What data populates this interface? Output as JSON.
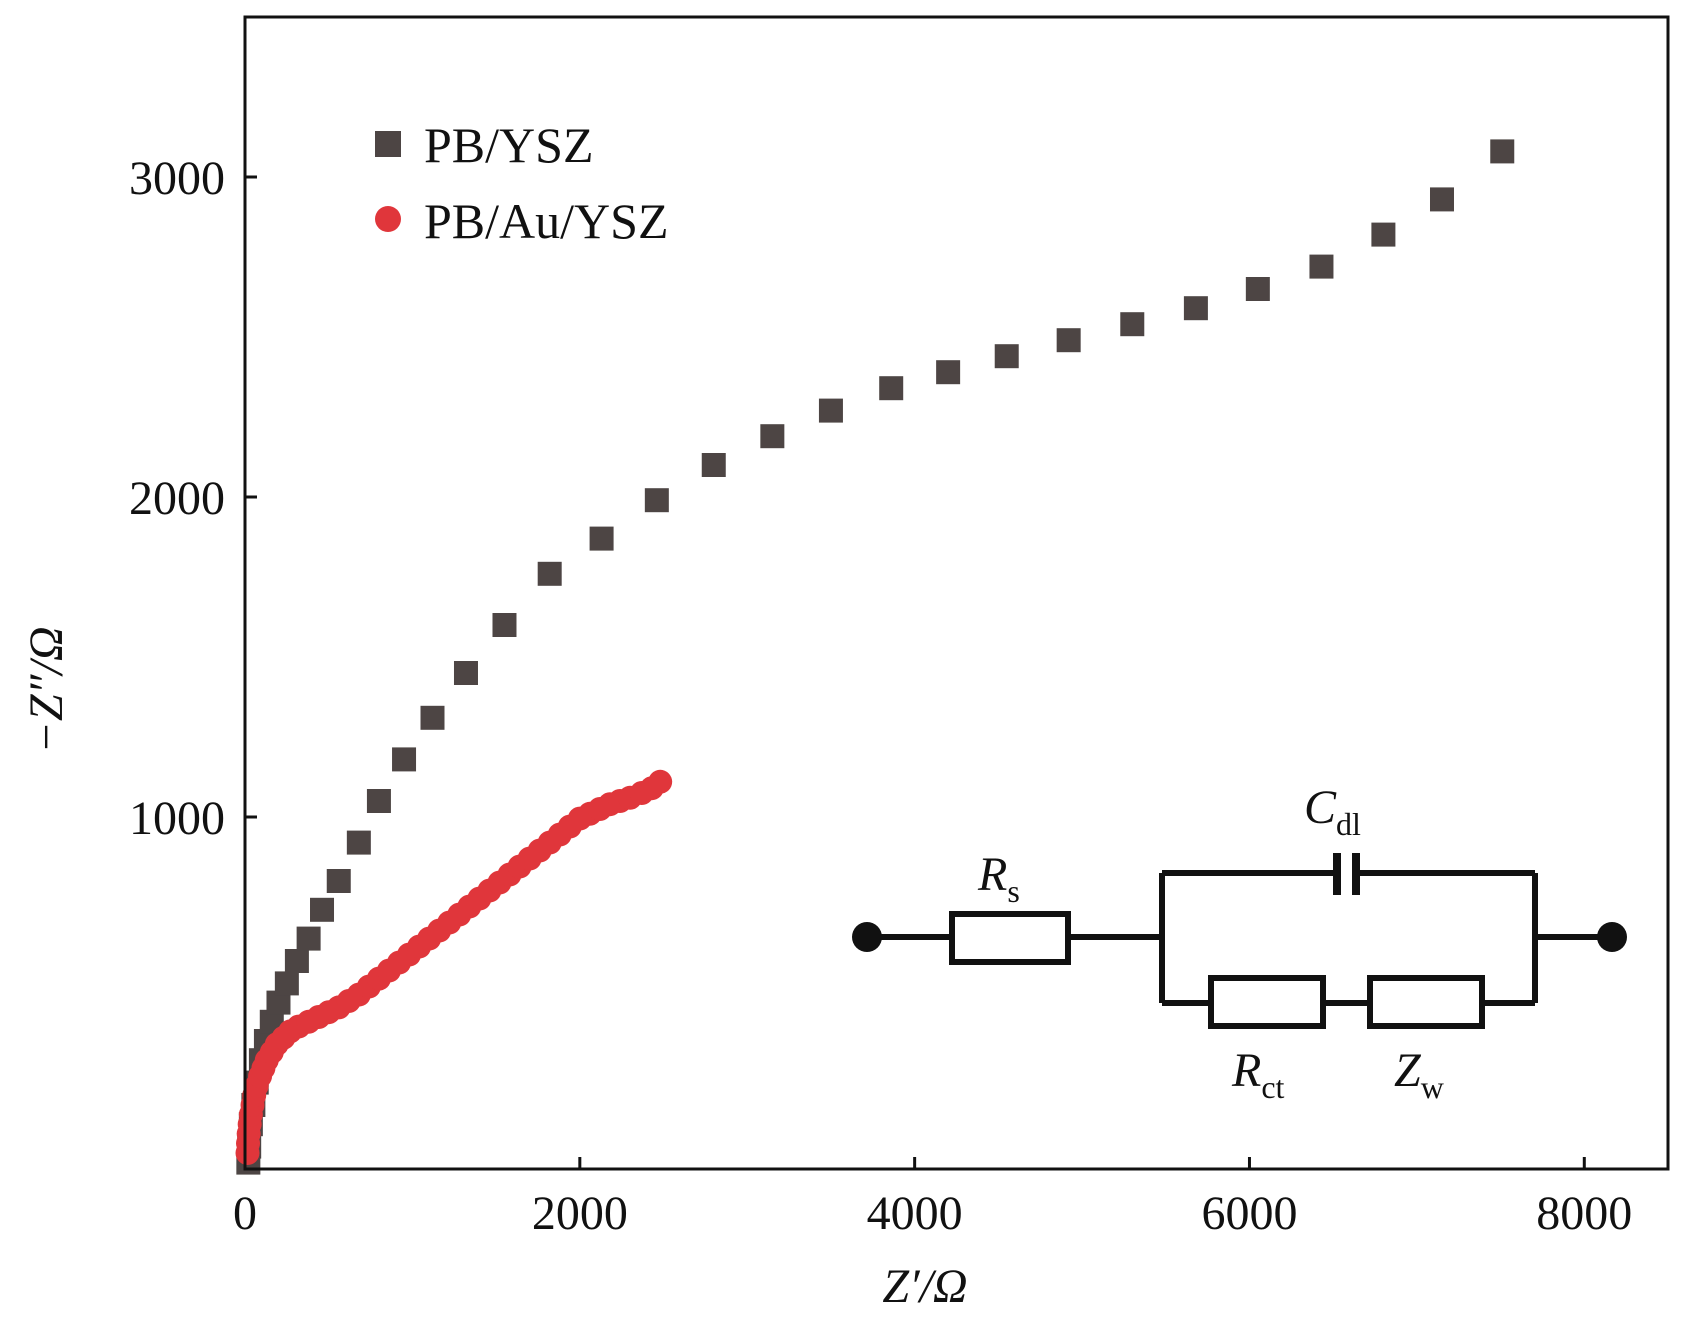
{
  "chart_data": {
    "type": "scatter",
    "title": "",
    "xlabel": "Z′/Ω",
    "ylabel": "−Z″/Ω",
    "xlim": [
      0,
      8500
    ],
    "ylim": [
      -100,
      3500
    ],
    "xticks": [
      0,
      2000,
      4000,
      6000,
      8000
    ],
    "yticks": [
      1000,
      2000,
      3000
    ],
    "legend_position": "top-left",
    "series": [
      {
        "name": "PB/YSZ",
        "marker": "square",
        "color": "#4d4544",
        "x": [
          20,
          25,
          35,
          50,
          70,
          95,
          125,
          160,
          200,
          250,
          310,
          380,
          460,
          560,
          680,
          800,
          950,
          1120,
          1320,
          1550,
          1820,
          2130,
          2460,
          2800,
          3150,
          3500,
          3860,
          4200,
          4550,
          4920,
          5300,
          5680,
          6050,
          6430,
          6800,
          7150,
          7510
        ],
        "y": [
          -80,
          -30,
          40,
          100,
          170,
          240,
          300,
          360,
          420,
          480,
          550,
          620,
          710,
          800,
          920,
          1050,
          1180,
          1310,
          1450,
          1600,
          1760,
          1870,
          1990,
          2100,
          2190,
          2270,
          2340,
          2390,
          2440,
          2490,
          2540,
          2590,
          2650,
          2720,
          2820,
          2930,
          3080
        ]
      },
      {
        "name": "PB/Au/YSZ",
        "marker": "circle",
        "color": "#e0363b",
        "x": [
          15,
          18,
          22,
          28,
          35,
          45,
          55,
          70,
          90,
          110,
          130,
          160,
          190,
          230,
          270,
          320,
          380,
          440,
          500,
          560,
          620,
          680,
          740,
          800,
          860,
          920,
          980,
          1040,
          1100,
          1160,
          1220,
          1280,
          1340,
          1400,
          1460,
          1520,
          1580,
          1640,
          1700,
          1760,
          1820,
          1880,
          1940,
          2000,
          2060,
          2120,
          2180,
          2240,
          2300,
          2370,
          2430,
          2480
        ],
        "y": [
          -50,
          -20,
          10,
          40,
          70,
          100,
          130,
          160,
          190,
          215,
          240,
          265,
          290,
          310,
          330,
          345,
          360,
          375,
          390,
          405,
          425,
          445,
          470,
          495,
          520,
          545,
          570,
          595,
          620,
          645,
          670,
          695,
          720,
          745,
          770,
          795,
          820,
          845,
          870,
          895,
          920,
          945,
          970,
          995,
          1010,
          1025,
          1040,
          1050,
          1060,
          1075,
          1090,
          1110
        ]
      }
    ],
    "inset": {
      "type": "equivalent-circuit",
      "components": [
        {
          "main": "R",
          "sub": "s"
        },
        {
          "main": "C",
          "sub": "dl"
        },
        {
          "main": "R",
          "sub": "ct"
        },
        {
          "main": "Z",
          "sub": "w"
        }
      ]
    }
  }
}
